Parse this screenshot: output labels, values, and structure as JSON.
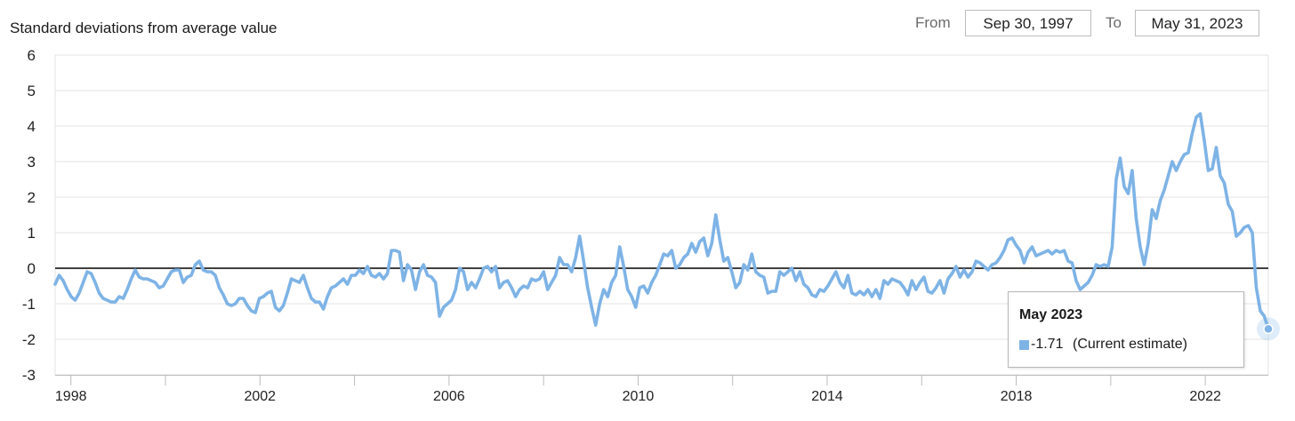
{
  "y_axis_title": "Standard deviations from average value",
  "range": {
    "from_label": "From",
    "from_value": "Sep 30, 1997",
    "to_label": "To",
    "to_value": "May 31, 2023"
  },
  "tooltip": {
    "title": "May 2023",
    "value": "-1.71",
    "series_name": "(Current estimate)"
  },
  "colors": {
    "line": "#7eb3e6",
    "grid": "#e3e3e3",
    "zero": "#000000",
    "tooltip_border": "#b8b8b8"
  },
  "chart_data": {
    "type": "line",
    "x_start": "1997-09",
    "x_end": "2023-05",
    "xlim": [
      "1997-09",
      "2023-05"
    ],
    "ylim": [
      -3,
      6
    ],
    "yticks": [
      -3,
      -2,
      -1,
      0,
      1,
      2,
      3,
      4,
      5,
      6
    ],
    "xtick_labels": [
      "1998",
      "2002",
      "2006",
      "2010",
      "2014",
      "2018",
      "2022"
    ],
    "ylabel": "Standard deviations from average value",
    "grid": true,
    "series": [
      {
        "name": "Current estimate",
        "resolution": "monthly",
        "values": [
          -0.45,
          -0.2,
          -0.35,
          -0.6,
          -0.8,
          -0.9,
          -0.7,
          -0.4,
          -0.1,
          -0.15,
          -0.4,
          -0.7,
          -0.85,
          -0.9,
          -0.95,
          -0.95,
          -0.8,
          -0.85,
          -0.6,
          -0.3,
          -0.05,
          -0.25,
          -0.3,
          -0.3,
          -0.35,
          -0.4,
          -0.55,
          -0.5,
          -0.3,
          -0.1,
          -0.05,
          -0.05,
          -0.4,
          -0.25,
          -0.2,
          0.1,
          0.2,
          -0.05,
          -0.1,
          -0.1,
          -0.2,
          -0.55,
          -0.75,
          -1.0,
          -1.05,
          -1.0,
          -0.85,
          -0.85,
          -1.05,
          -1.2,
          -1.25,
          -0.85,
          -0.8,
          -0.7,
          -0.65,
          -1.1,
          -1.2,
          -1.05,
          -0.7,
          -0.3,
          -0.35,
          -0.4,
          -0.2,
          -0.55,
          -0.85,
          -0.95,
          -0.95,
          -1.15,
          -0.8,
          -0.55,
          -0.5,
          -0.4,
          -0.3,
          -0.45,
          -0.2,
          -0.2,
          -0.05,
          -0.15,
          0.05,
          -0.2,
          -0.25,
          -0.15,
          -0.3,
          -0.15,
          0.5,
          0.5,
          0.45,
          -0.35,
          0.1,
          -0.05,
          -0.6,
          -0.1,
          0.1,
          -0.2,
          -0.25,
          -0.4,
          -1.35,
          -1.1,
          -1.0,
          -0.9,
          -0.6,
          0.0,
          -0.1,
          -0.6,
          -0.4,
          -0.55,
          -0.3,
          0.0,
          0.05,
          -0.1,
          0.05,
          -0.55,
          -0.4,
          -0.35,
          -0.55,
          -0.8,
          -0.6,
          -0.5,
          -0.55,
          -0.3,
          -0.35,
          -0.3,
          -0.1,
          -0.6,
          -0.4,
          -0.2,
          0.3,
          0.1,
          0.1,
          -0.1,
          0.3,
          0.9,
          0.2,
          -0.55,
          -1.1,
          -1.6,
          -1.0,
          -0.6,
          -0.8,
          -0.4,
          -0.2,
          0.6,
          0.05,
          -0.6,
          -0.8,
          -1.1,
          -0.55,
          -0.5,
          -0.7,
          -0.4,
          -0.2,
          0.1,
          0.4,
          0.35,
          0.5,
          0.0,
          0.1,
          0.3,
          0.4,
          0.7,
          0.45,
          0.75,
          0.85,
          0.35,
          0.7,
          1.5,
          0.8,
          0.2,
          0.3,
          -0.1,
          -0.55,
          -0.4,
          0.1,
          -0.05,
          0.4,
          -0.1,
          -0.2,
          -0.25,
          -0.7,
          -0.65,
          -0.65,
          -0.1,
          -0.2,
          -0.1,
          0.0,
          -0.35,
          -0.1,
          -0.45,
          -0.55,
          -0.75,
          -0.8,
          -0.6,
          -0.65,
          -0.5,
          -0.3,
          -0.1,
          -0.4,
          -0.55,
          -0.2,
          -0.7,
          -0.75,
          -0.65,
          -0.75,
          -0.6,
          -0.8,
          -0.6,
          -0.85,
          -0.35,
          -0.45,
          -0.3,
          -0.35,
          -0.4,
          -0.55,
          -0.75,
          -0.35,
          -0.6,
          -0.4,
          -0.25,
          -0.65,
          -0.7,
          -0.55,
          -0.35,
          -0.7,
          -0.3,
          -0.15,
          0.05,
          -0.25,
          -0.05,
          -0.25,
          -0.1,
          0.2,
          0.15,
          0.05,
          -0.05,
          0.1,
          0.15,
          0.3,
          0.5,
          0.8,
          0.85,
          0.65,
          0.5,
          0.15,
          0.45,
          0.6,
          0.35,
          0.4,
          0.45,
          0.5,
          0.4,
          0.5,
          0.45,
          0.5,
          0.2,
          0.15,
          -0.35,
          -0.6,
          -0.5,
          -0.4,
          -0.2,
          0.1,
          0.05,
          0.1,
          0.05,
          0.6,
          2.5,
          3.1,
          2.3,
          2.1,
          2.75,
          1.4,
          0.6,
          0.1,
          0.7,
          1.65,
          1.4,
          1.9,
          2.2,
          2.6,
          3.0,
          2.75,
          3.0,
          3.2,
          3.25,
          3.8,
          4.25,
          4.35,
          3.6,
          2.75,
          2.8,
          3.4,
          2.6,
          2.4,
          1.8,
          1.6,
          0.9,
          1.0,
          1.15,
          1.2,
          1.0,
          -0.55,
          -1.2,
          -1.35,
          -1.71
        ]
      }
    ]
  }
}
